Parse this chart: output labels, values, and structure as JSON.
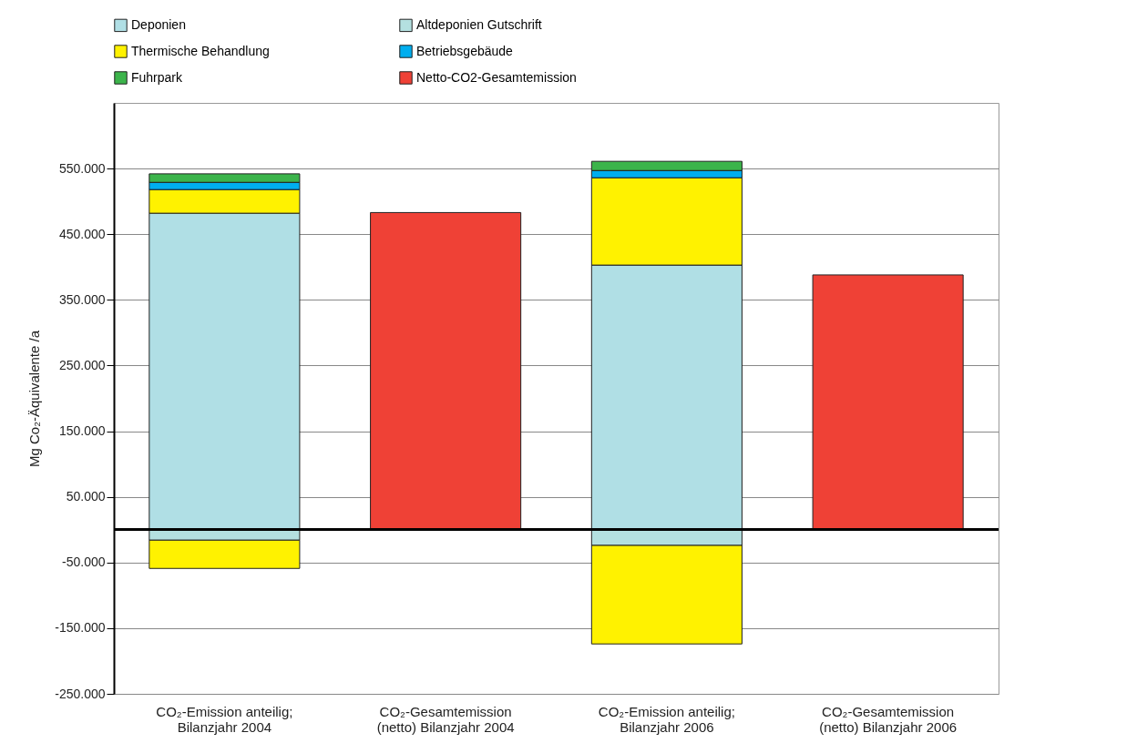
{
  "chart_data": {
    "type": "bar",
    "stacked": true,
    "ylabel": "Mg Co₂-Äquivalente /a",
    "categories": [
      "CO₂-Emission anteilig;\nBilanzjahr 2004",
      "CO₂-Gesamtemission\n(netto) Bilanzjahr 2004",
      "CO₂-Emission anteilig;\nBilanzjahr 2006",
      "CO₂-Gesamtemission\n(netto) Bilanzjahr 2006"
    ],
    "series": [
      {
        "name": "Deponien",
        "color": "#b0dfe5",
        "values": [
          482000,
          null,
          403000,
          null
        ]
      },
      {
        "name": "Altdeponien Gutschrift",
        "color": "#b4e0e0",
        "values": [
          -16000,
          null,
          -24000,
          null
        ]
      },
      {
        "name": "Thermische Behandlung",
        "color": "#fff200",
        "values": [
          36000,
          null,
          133000,
          null
        ]
      },
      {
        "color": "#fff200",
        "values": [
          -43000,
          null,
          -150000,
          null
        ]
      },
      {
        "name": "Betriebsgebäude",
        "color": "#00aeef",
        "values": [
          11000,
          null,
          11000,
          null
        ]
      },
      {
        "name": "Fuhrpark",
        "color": "#3cb44b",
        "values": [
          13000,
          null,
          14000,
          null
        ]
      },
      {
        "name": "Netto-CO2-Gesamtemission",
        "color": "#ef4136",
        "values": [
          null,
          483000,
          null,
          388000
        ]
      }
    ],
    "ylim": [
      -250000,
      650000
    ],
    "yticks": [
      {
        "value": -250000,
        "label": "-250.000"
      },
      {
        "value": -150000,
        "label": "-150.000"
      },
      {
        "value": -50000,
        "label": "-50.000"
      },
      {
        "value": 50000,
        "label": "50.000"
      },
      {
        "value": 150000,
        "label": "150.000"
      },
      {
        "value": 250000,
        "label": "250.000"
      },
      {
        "value": 350000,
        "label": "350.000"
      },
      {
        "value": 450000,
        "label": "450.000"
      },
      {
        "value": 550000,
        "label": "550.000"
      }
    ],
    "grid": "y",
    "legend": "top left"
  }
}
